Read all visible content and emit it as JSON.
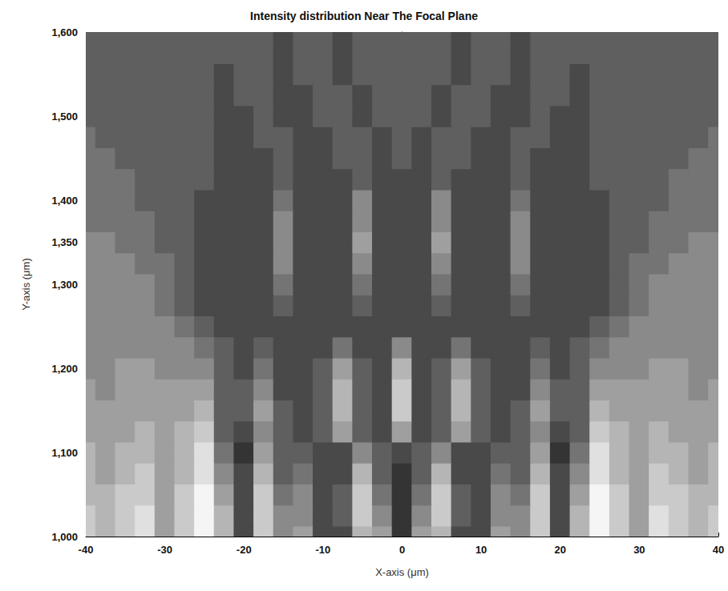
{
  "chart_data": {
    "type": "heatmap",
    "title": "Intensity distribution Near The Focal Plane",
    "x_label": "X-axis (μm)",
    "y_label": "Y-axis (μm)",
    "xlim": [
      -40,
      40
    ],
    "xticks": [
      -40,
      -30,
      -20,
      -10,
      0,
      10,
      20,
      30,
      40
    ],
    "ylim": [
      1000,
      1600
    ],
    "yticks": [
      1000,
      1100,
      1200,
      1300,
      1350,
      1400,
      1500,
      1600
    ],
    "grid": false,
    "value_range": [
      0,
      10
    ],
    "x": [
      -40,
      -37.5,
      -35,
      -32.5,
      -30,
      -27.5,
      -25,
      -22.5,
      -20,
      -17.5,
      -15,
      -12.5,
      -10,
      -7.5,
      -5,
      -2.5,
      0,
      2.5,
      5,
      7.5,
      10,
      12.5,
      15,
      17.5,
      20,
      22.5,
      25,
      27.5,
      30,
      32.5,
      35,
      37.5,
      40
    ],
    "y": [
      1000,
      1025,
      1050,
      1075,
      1100,
      1125,
      1150,
      1175,
      1200,
      1225,
      1250,
      1275,
      1300,
      1325,
      1350,
      1375,
      1400,
      1425,
      1450,
      1475,
      1500,
      1525,
      1550,
      1575,
      1600
    ],
    "z": [
      [
        8,
        7,
        8,
        9,
        6,
        8,
        10,
        7,
        2,
        8,
        5,
        6,
        2,
        2,
        7,
        6,
        1,
        6,
        7,
        2,
        2,
        6,
        5,
        8,
        2,
        7,
        10,
        8,
        6,
        9,
        8,
        7,
        8
      ],
      [
        8,
        7,
        8,
        9,
        6,
        8,
        10,
        7,
        2,
        8,
        5,
        5,
        2,
        3,
        8,
        5,
        1,
        5,
        8,
        3,
        2,
        5,
        5,
        8,
        2,
        7,
        10,
        8,
        6,
        9,
        8,
        7,
        8
      ],
      [
        7,
        7,
        8,
        8,
        6,
        8,
        10,
        6,
        2,
        8,
        4,
        5,
        2,
        3,
        8,
        4,
        1,
        4,
        8,
        3,
        2,
        5,
        4,
        8,
        2,
        6,
        10,
        8,
        6,
        8,
        8,
        7,
        7
      ],
      [
        7,
        6,
        7,
        8,
        6,
        7,
        9,
        5,
        2,
        7,
        3,
        4,
        2,
        2,
        7,
        3,
        1,
        3,
        7,
        2,
        2,
        4,
        3,
        7,
        2,
        5,
        9,
        7,
        6,
        8,
        7,
        6,
        7
      ],
      [
        7,
        6,
        7,
        7,
        6,
        7,
        9,
        4,
        1,
        6,
        3,
        3,
        2,
        2,
        5,
        3,
        2,
        3,
        5,
        2,
        2,
        3,
        3,
        6,
        1,
        4,
        9,
        7,
        6,
        7,
        7,
        6,
        7
      ],
      [
        6,
        6,
        6,
        7,
        6,
        7,
        8,
        3,
        2,
        5,
        3,
        2,
        3,
        6,
        3,
        2,
        6,
        2,
        3,
        6,
        3,
        2,
        3,
        5,
        2,
        3,
        8,
        7,
        6,
        7,
        6,
        6,
        6
      ],
      [
        6,
        6,
        6,
        6,
        6,
        6,
        7,
        3,
        3,
        6,
        3,
        2,
        3,
        7,
        3,
        2,
        8,
        2,
        3,
        7,
        3,
        2,
        3,
        6,
        3,
        3,
        7,
        6,
        6,
        6,
        6,
        6,
        6
      ],
      [
        6,
        5,
        6,
        6,
        6,
        6,
        6,
        3,
        3,
        5,
        2,
        2,
        3,
        7,
        3,
        2,
        8,
        2,
        3,
        7,
        3,
        2,
        2,
        5,
        3,
        3,
        6,
        6,
        6,
        6,
        6,
        5,
        6
      ],
      [
        5,
        5,
        6,
        6,
        5,
        5,
        5,
        3,
        2,
        4,
        2,
        2,
        3,
        6,
        3,
        2,
        7,
        2,
        3,
        6,
        3,
        2,
        2,
        4,
        2,
        3,
        5,
        5,
        5,
        6,
        6,
        5,
        5
      ],
      [
        5,
        5,
        5,
        5,
        5,
        5,
        4,
        3,
        2,
        3,
        2,
        2,
        2,
        4,
        2,
        2,
        5,
        2,
        2,
        4,
        2,
        2,
        2,
        3,
        2,
        3,
        4,
        5,
        5,
        5,
        5,
        5,
        5
      ],
      [
        5,
        5,
        5,
        5,
        5,
        4,
        3,
        2,
        2,
        2,
        2,
        2,
        2,
        2,
        2,
        2,
        2,
        2,
        2,
        2,
        2,
        2,
        2,
        2,
        2,
        2,
        3,
        4,
        5,
        5,
        5,
        5,
        5
      ],
      [
        5,
        5,
        5,
        5,
        4,
        3,
        2,
        2,
        2,
        2,
        3,
        2,
        2,
        2,
        3,
        2,
        2,
        2,
        3,
        2,
        2,
        2,
        3,
        2,
        2,
        2,
        2,
        3,
        4,
        5,
        5,
        5,
        5
      ],
      [
        5,
        5,
        5,
        5,
        4,
        3,
        2,
        2,
        2,
        2,
        4,
        2,
        2,
        2,
        4,
        2,
        2,
        2,
        4,
        2,
        2,
        2,
        4,
        2,
        2,
        2,
        2,
        3,
        4,
        5,
        5,
        5,
        5
      ],
      [
        5,
        5,
        5,
        4,
        4,
        3,
        2,
        2,
        2,
        2,
        5,
        2,
        2,
        2,
        5,
        2,
        2,
        2,
        5,
        2,
        2,
        2,
        5,
        2,
        2,
        2,
        2,
        3,
        4,
        4,
        5,
        5,
        5
      ],
      [
        5,
        5,
        4,
        4,
        3,
        3,
        2,
        2,
        2,
        2,
        5,
        2,
        2,
        2,
        6,
        2,
        2,
        2,
        6,
        2,
        2,
        2,
        5,
        2,
        2,
        2,
        2,
        3,
        3,
        4,
        4,
        5,
        5
      ],
      [
        4,
        4,
        4,
        4,
        3,
        3,
        2,
        2,
        2,
        2,
        5,
        2,
        2,
        2,
        5,
        2,
        2,
        2,
        5,
        2,
        2,
        2,
        5,
        2,
        2,
        2,
        2,
        3,
        3,
        4,
        4,
        4,
        4
      ],
      [
        4,
        4,
        4,
        3,
        3,
        3,
        2,
        2,
        2,
        2,
        4,
        2,
        2,
        2,
        5,
        2,
        2,
        2,
        5,
        2,
        2,
        2,
        4,
        2,
        2,
        2,
        2,
        3,
        3,
        3,
        4,
        4,
        4
      ],
      [
        4,
        4,
        4,
        3,
        3,
        3,
        3,
        2,
        2,
        2,
        3,
        2,
        2,
        2,
        3,
        2,
        2,
        2,
        3,
        2,
        2,
        2,
        3,
        2,
        2,
        2,
        3,
        3,
        3,
        3,
        4,
        4,
        4
      ],
      [
        4,
        4,
        3,
        3,
        3,
        3,
        3,
        2,
        2,
        2,
        3,
        2,
        2,
        3,
        3,
        2,
        3,
        2,
        3,
        3,
        2,
        2,
        3,
        2,
        2,
        2,
        3,
        3,
        3,
        3,
        3,
        4,
        4
      ],
      [
        4,
        3,
        3,
        3,
        3,
        3,
        3,
        2,
        2,
        3,
        3,
        2,
        2,
        3,
        3,
        2,
        3,
        2,
        3,
        3,
        2,
        2,
        3,
        3,
        2,
        2,
        3,
        3,
        3,
        3,
        3,
        3,
        4
      ],
      [
        3,
        3,
        3,
        3,
        3,
        3,
        3,
        2,
        2,
        3,
        2,
        2,
        3,
        3,
        2,
        3,
        3,
        3,
        2,
        3,
        3,
        2,
        2,
        3,
        2,
        2,
        3,
        3,
        3,
        3,
        3,
        3,
        3
      ],
      [
        3,
        3,
        3,
        3,
        3,
        3,
        3,
        2,
        3,
        3,
        2,
        2,
        3,
        3,
        2,
        3,
        3,
        3,
        2,
        3,
        3,
        2,
        2,
        3,
        3,
        2,
        3,
        3,
        3,
        3,
        3,
        3,
        3
      ],
      [
        3,
        3,
        3,
        3,
        3,
        3,
        3,
        2,
        3,
        3,
        2,
        3,
        3,
        2,
        3,
        3,
        3,
        3,
        3,
        2,
        3,
        3,
        2,
        3,
        3,
        2,
        3,
        3,
        3,
        3,
        3,
        3,
        3
      ],
      [
        3,
        3,
        3,
        3,
        3,
        3,
        3,
        3,
        3,
        3,
        2,
        3,
        3,
        2,
        3,
        3,
        3,
        3,
        3,
        2,
        3,
        3,
        2,
        3,
        3,
        3,
        3,
        3,
        3,
        3,
        3,
        3,
        3
      ],
      [
        3,
        3,
        3,
        3,
        3,
        3,
        3,
        3,
        3,
        3,
        2,
        3,
        3,
        2,
        3,
        3,
        3,
        3,
        3,
        2,
        3,
        3,
        2,
        3,
        3,
        3,
        3,
        3,
        3,
        3,
        3,
        3,
        3
      ]
    ]
  }
}
